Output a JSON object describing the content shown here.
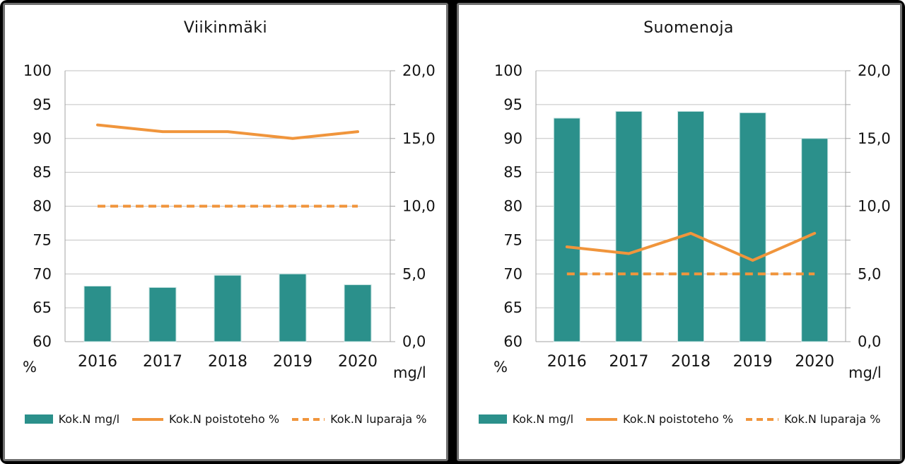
{
  "window": {
    "background": "#000000",
    "panel_border": "#6f6f6f",
    "panel_background": "#ffffff"
  },
  "colors": {
    "teal": "#2B908B",
    "teal_edge": "#c9e4e3",
    "orange": "#F0953C",
    "gridline": "#C2C2C2",
    "axis": "#A3A3A3",
    "text": "#141414"
  },
  "legend": {
    "items": [
      {
        "label": "Kok.N mg/l",
        "swatch": "bar"
      },
      {
        "label": "Kok.N poistoteho %",
        "swatch": "line"
      },
      {
        "label": "Kok.N luparaja %",
        "swatch": "dashed-line"
      }
    ]
  },
  "chart_data": [
    {
      "type": "bar",
      "title": "Viikinmäki",
      "categories": [
        "2016",
        "2017",
        "2018",
        "2019",
        "2020"
      ],
      "left_axis": {
        "label": "%",
        "min": 60,
        "max": 100,
        "step": 5,
        "tick_labels": [
          "60",
          "65",
          "70",
          "75",
          "80",
          "85",
          "90",
          "95",
          "100"
        ]
      },
      "right_axis": {
        "label": "mg/l",
        "min": 0,
        "max": 20,
        "step": 5,
        "tick_labels": [
          "0,0",
          "5,0",
          "10,0",
          "15,0",
          "20,0"
        ]
      },
      "grid": true,
      "legend_position": "bottom",
      "series": [
        {
          "name": "Kok.N mg/l",
          "type": "bar",
          "axis": "right",
          "color": "teal",
          "values": [
            4.1,
            4.0,
            4.9,
            5.0,
            4.2
          ]
        },
        {
          "name": "Kok.N poistoteho %",
          "type": "line",
          "axis": "left",
          "color": "orange",
          "values": [
            92,
            91,
            91,
            90,
            91
          ]
        },
        {
          "name": "Kok.N luparaja %",
          "type": "line",
          "dash": true,
          "axis": "left",
          "color": "orange",
          "values": [
            80,
            80,
            80,
            80,
            80
          ]
        }
      ]
    },
    {
      "type": "bar",
      "title": "Suomenoja",
      "categories": [
        "2016",
        "2017",
        "2018",
        "2019",
        "2020"
      ],
      "left_axis": {
        "label": "%",
        "min": 60,
        "max": 100,
        "step": 5,
        "tick_labels": [
          "60",
          "65",
          "70",
          "75",
          "80",
          "85",
          "90",
          "95",
          "100"
        ]
      },
      "right_axis": {
        "label": "mg/l",
        "min": 0,
        "max": 20,
        "step": 5,
        "tick_labels": [
          "0,0",
          "5,0",
          "10,0",
          "15,0",
          "20,0"
        ]
      },
      "grid": true,
      "legend_position": "bottom",
      "series": [
        {
          "name": "Kok.N mg/l",
          "type": "bar",
          "axis": "right",
          "color": "teal",
          "values": [
            16.5,
            17.0,
            17.0,
            16.9,
            15.0
          ]
        },
        {
          "name": "Kok.N poistoteho %",
          "type": "line",
          "axis": "left",
          "color": "orange",
          "values": [
            74,
            73,
            76,
            72,
            76
          ]
        },
        {
          "name": "Kok.N luparaja %",
          "type": "line",
          "dash": true,
          "axis": "left",
          "color": "orange",
          "values": [
            70,
            70,
            70,
            70,
            70
          ]
        }
      ]
    }
  ]
}
